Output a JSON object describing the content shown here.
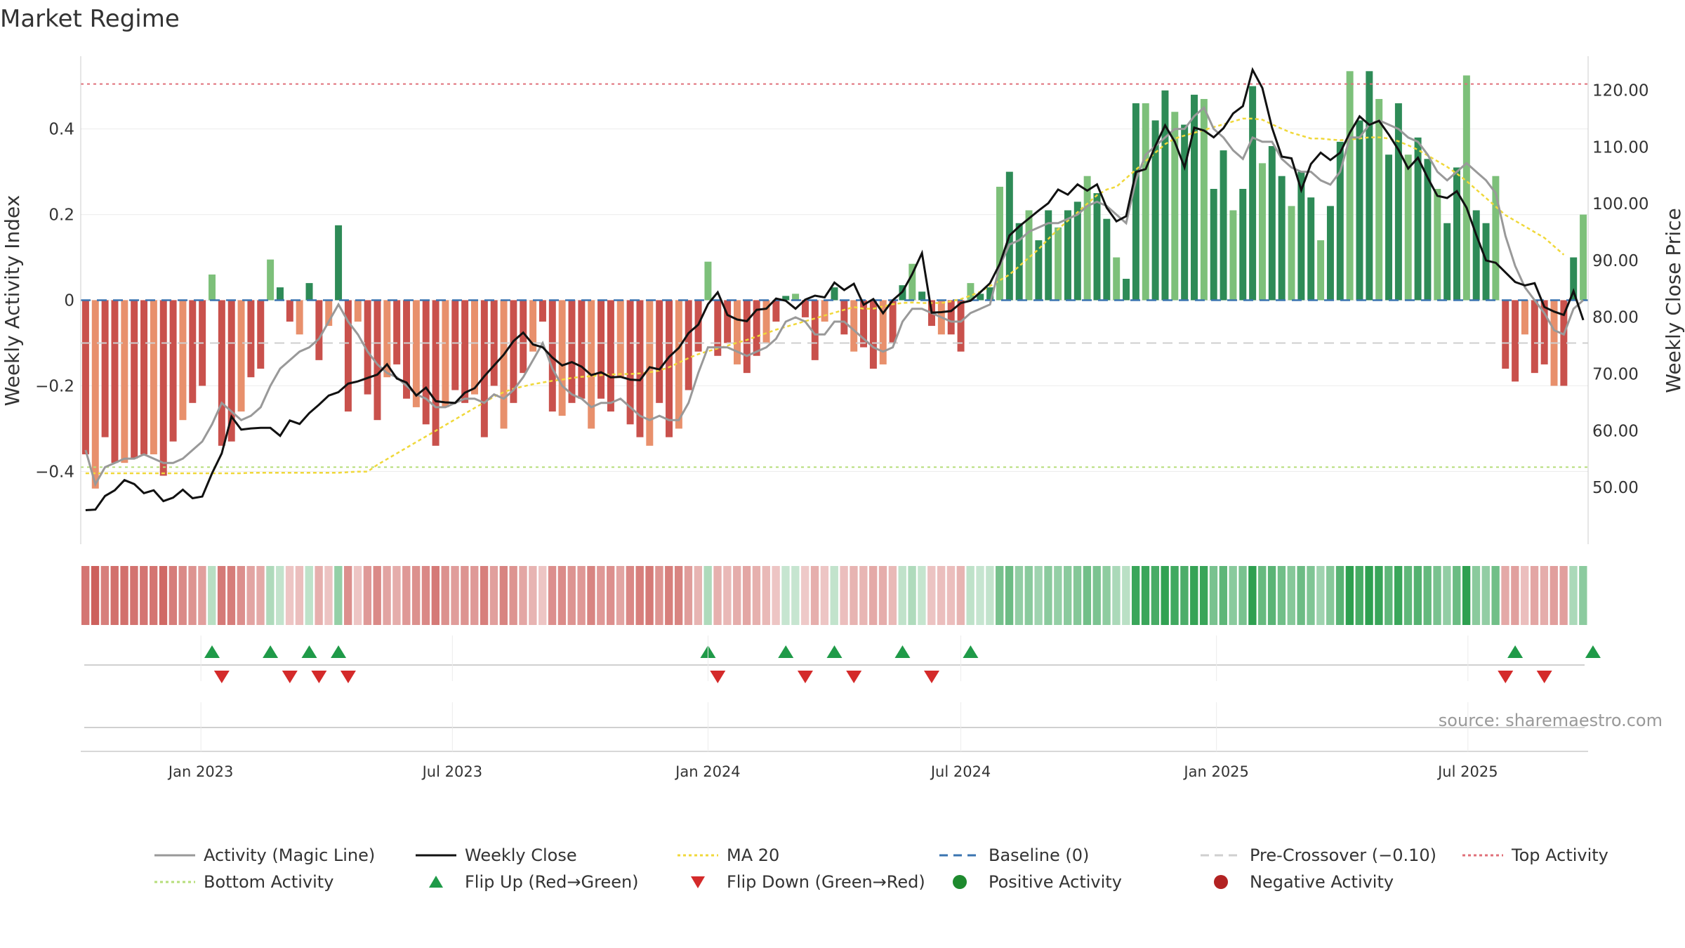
{
  "title": "Market Regime",
  "source": "source: sharemaestro.com",
  "chart_data": {
    "type": "bar",
    "x_start": "2022-10-10",
    "x_interval": "weekly",
    "xlabel": "",
    "ylabel_left": "Weekly Activity Index",
    "ylabel_right": "Weekly Close Price",
    "ylim_left": [
      -0.57,
      0.57
    ],
    "ylim_right": [
      40,
      126
    ],
    "yticks_left": [
      {
        "value": 0.4,
        "label": "0.4"
      },
      {
        "value": 0.2,
        "label": "0.2"
      },
      {
        "value": 0,
        "label": "0"
      },
      {
        "value": -0.2,
        "label": "−0.2"
      },
      {
        "value": -0.4,
        "label": "−0.4"
      }
    ],
    "yticks_right": [
      {
        "value": 120,
        "label": "120.00"
      },
      {
        "value": 110,
        "label": "110.00"
      },
      {
        "value": 100,
        "label": "100.00"
      },
      {
        "value": 90,
        "label": "90.00"
      },
      {
        "value": 80,
        "label": "80.00"
      },
      {
        "value": 70,
        "label": "70.00"
      },
      {
        "value": 60,
        "label": "60.00"
      },
      {
        "value": 50,
        "label": "50.00"
      }
    ],
    "xticks": [
      {
        "date": "2023-01-01",
        "label": "Jan 2023"
      },
      {
        "date": "2023-07-01",
        "label": "Jul 2023"
      },
      {
        "date": "2024-01-01",
        "label": "Jan 2024"
      },
      {
        "date": "2024-07-01",
        "label": "Jul 2024"
      },
      {
        "date": "2025-01-01",
        "label": "Jan 2025"
      },
      {
        "date": "2025-07-01",
        "label": "Jul 2025"
      }
    ],
    "levels": {
      "top_activity": 0.505,
      "bottom_activity": -0.39,
      "pre_crossover": -0.1,
      "baseline": 0
    },
    "activity": [
      -0.36,
      -0.44,
      -0.32,
      -0.38,
      -0.38,
      -0.37,
      -0.36,
      -0.36,
      -0.41,
      -0.33,
      -0.28,
      -0.24,
      -0.2,
      0.06,
      -0.34,
      -0.33,
      -0.26,
      -0.18,
      -0.16,
      0.095,
      0.03,
      -0.05,
      -0.08,
      0.04,
      -0.14,
      -0.06,
      0.175,
      -0.26,
      -0.05,
      -0.22,
      -0.28,
      -0.18,
      -0.15,
      -0.23,
      -0.25,
      -0.29,
      -0.34,
      -0.25,
      -0.21,
      -0.24,
      -0.22,
      -0.32,
      -0.2,
      -0.3,
      -0.24,
      -0.17,
      -0.12,
      -0.05,
      -0.26,
      -0.27,
      -0.24,
      -0.23,
      -0.3,
      -0.23,
      -0.26,
      -0.18,
      -0.29,
      -0.32,
      -0.34,
      -0.24,
      -0.32,
      -0.3,
      -0.21,
      -0.12,
      0.09,
      -0.13,
      -0.1,
      -0.15,
      -0.17,
      -0.13,
      -0.1,
      -0.05,
      0.01,
      0.015,
      -0.04,
      -0.14,
      -0.05,
      0.03,
      -0.08,
      -0.12,
      -0.11,
      -0.16,
      -0.15,
      -0.1,
      0.035,
      0.085,
      0.02,
      -0.06,
      -0.08,
      -0.08,
      -0.12,
      0.04,
      0.015,
      0.03,
      0.265,
      0.3,
      0.18,
      0.21,
      0.14,
      0.21,
      0.17,
      0.21,
      0.23,
      0.29,
      0.25,
      0.19,
      0.1,
      0.05,
      0.46,
      0.46,
      0.42,
      0.49,
      0.44,
      0.41,
      0.48,
      0.47,
      0.26,
      0.35,
      0.21,
      0.26,
      0.5,
      0.32,
      0.36,
      0.29,
      0.22,
      0.3,
      0.24,
      0.14,
      0.22,
      0.37,
      0.535,
      0.42,
      0.535,
      0.47,
      0.34,
      0.46,
      0.34,
      0.38,
      0.33,
      0.26,
      0.18,
      0.31,
      0.525,
      0.21,
      0.18,
      0.29,
      -0.16,
      -0.19,
      -0.08,
      -0.17,
      -0.15,
      -0.2,
      -0.2,
      0.1,
      0.2
    ],
    "close": [
      46.0,
      46.1,
      48.5,
      49.5,
      51.3,
      50.6,
      49.0,
      49.5,
      47.6,
      48.2,
      49.6,
      48.1,
      48.4,
      52.5,
      56.0,
      62.5,
      60.2,
      60.4,
      60.5,
      60.5,
      59.1,
      61.8,
      61.2,
      63.1,
      64.6,
      66.2,
      66.8,
      68.3,
      68.7,
      69.3,
      69.9,
      71.7,
      69.2,
      68.5,
      66.2,
      67.6,
      65.2,
      65.0,
      64.9,
      66.7,
      67.5,
      69.6,
      71.5,
      73.4,
      75.8,
      77.3,
      75.2,
      74.7,
      72.9,
      71.5,
      72.1,
      71.3,
      69.8,
      70.3,
      69.4,
      69.5,
      69.0,
      68.9,
      71.2,
      70.8,
      73.0,
      74.6,
      77.2,
      78.7,
      82.3,
      84.4,
      80.4,
      79.6,
      79.3,
      81.3,
      81.5,
      83.3,
      82.9,
      81.5,
      83.1,
      83.8,
      83.5,
      86.1,
      84.8,
      85.9,
      82.2,
      83.2,
      80.7,
      83.0,
      84.5,
      87.6,
      91.3,
      80.8,
      80.9,
      81.1,
      82.5,
      82.9,
      84.4,
      86.0,
      89.4,
      94.4,
      96.0,
      97.4,
      98.8,
      100.1,
      102.5,
      101.6,
      103.4,
      102.3,
      103.4,
      99.3,
      96.9,
      97.8,
      105.6,
      106.1,
      110.2,
      113.8,
      110.9,
      106.4,
      113.4,
      112.9,
      111.7,
      113.3,
      115.9,
      117.2,
      123.6,
      120.4,
      113.4,
      108.3,
      108.0,
      102.4,
      107.0,
      109.0,
      107.7,
      109.0,
      112.5,
      115.4,
      113.9,
      114.6,
      112.2,
      109.5,
      106.2,
      108.1,
      104.6,
      101.4,
      101.0,
      102.2,
      99.3,
      94.5,
      90.0,
      89.6,
      87.9,
      86.2,
      85.6,
      86.0,
      81.8,
      81.0,
      80.4,
      84.6,
      79.5
    ],
    "magic_line": [
      -0.35,
      -0.43,
      -0.39,
      -0.38,
      -0.37,
      -0.37,
      -0.36,
      -0.37,
      -0.38,
      -0.38,
      -0.37,
      -0.35,
      -0.33,
      -0.29,
      -0.24,
      -0.26,
      -0.28,
      -0.27,
      -0.25,
      -0.2,
      -0.16,
      -0.14,
      -0.12,
      -0.11,
      -0.09,
      -0.05,
      -0.01,
      -0.05,
      -0.08,
      -0.12,
      -0.15,
      -0.17,
      -0.18,
      -0.2,
      -0.22,
      -0.23,
      -0.25,
      -0.25,
      -0.24,
      -0.23,
      -0.23,
      -0.24,
      -0.22,
      -0.23,
      -0.21,
      -0.18,
      -0.14,
      -0.1,
      -0.16,
      -0.2,
      -0.22,
      -0.23,
      -0.25,
      -0.24,
      -0.24,
      -0.23,
      -0.25,
      -0.27,
      -0.28,
      -0.27,
      -0.28,
      -0.28,
      -0.24,
      -0.17,
      -0.11,
      -0.11,
      -0.11,
      -0.12,
      -0.13,
      -0.12,
      -0.11,
      -0.09,
      -0.05,
      -0.04,
      -0.05,
      -0.08,
      -0.08,
      -0.05,
      -0.05,
      -0.07,
      -0.09,
      -0.11,
      -0.12,
      -0.11,
      -0.05,
      -0.02,
      -0.02,
      -0.03,
      -0.04,
      -0.05,
      -0.05,
      -0.03,
      -0.02,
      -0.01,
      0.08,
      0.13,
      0.14,
      0.16,
      0.17,
      0.18,
      0.18,
      0.19,
      0.2,
      0.22,
      0.23,
      0.22,
      0.2,
      0.18,
      0.28,
      0.34,
      0.36,
      0.38,
      0.4,
      0.4,
      0.43,
      0.45,
      0.4,
      0.38,
      0.35,
      0.33,
      0.38,
      0.37,
      0.37,
      0.33,
      0.31,
      0.3,
      0.3,
      0.28,
      0.27,
      0.3,
      0.38,
      0.38,
      0.41,
      0.42,
      0.41,
      0.4,
      0.38,
      0.37,
      0.34,
      0.3,
      0.28,
      0.3,
      0.32,
      0.3,
      0.28,
      0.25,
      0.15,
      0.08,
      0.03,
      0.0,
      -0.03,
      -0.07,
      -0.08,
      -0.02,
      0.0
    ],
    "ma20": [
      52.5,
      52.5,
      52.5,
      52.5,
      52.5,
      52.5,
      52.5,
      52.5,
      52.5,
      52.5,
      52.5,
      52.5,
      52.5,
      52.5,
      52.5,
      52.5,
      52.5,
      52.6,
      52.6,
      52.6,
      52.6,
      52.6,
      52.6,
      52.6,
      52.6,
      52.6,
      52.6,
      52.7,
      52.8,
      52.8,
      54.0,
      55.0,
      56.0,
      57.0,
      58.0,
      59.0,
      60.0,
      61.0,
      62.0,
      63.0,
      64.0,
      65.0,
      66.0,
      66.8,
      67.4,
      67.8,
      68.2,
      68.5,
      68.8,
      69.0,
      69.3,
      69.5,
      69.6,
      69.8,
      69.9,
      70.0,
      70.0,
      70.1,
      70.3,
      70.6,
      71.2,
      72.0,
      72.8,
      73.5,
      74.0,
      74.5,
      75.0,
      75.5,
      76.0,
      76.6,
      77.2,
      77.8,
      78.3,
      78.8,
      79.3,
      79.8,
      80.3,
      80.8,
      81.3,
      81.8,
      81.5,
      81.5,
      81.9,
      82.3,
      82.5,
      82.6,
      82.5,
      82.5,
      82.5,
      82.8,
      83.2,
      83.8,
      84.5,
      85.5,
      86.5,
      87.5,
      89.0,
      90.5,
      92.0,
      93.8,
      95.5,
      97.0,
      98.5,
      100.0,
      101.5,
      102.5,
      103.0,
      104.5,
      106.0,
      107.5,
      109.0,
      110.5,
      111.5,
      112.0,
      112.5,
      113.0,
      113.5,
      114.0,
      114.5,
      115.0,
      115.0,
      114.8,
      114.0,
      113.2,
      112.5,
      112.0,
      111.5,
      111.5,
      111.3,
      111.2,
      111.3,
      111.5,
      111.7,
      111.7,
      111.5,
      111.0,
      110.3,
      109.5,
      108.5,
      107.5,
      106.5,
      105.3,
      104.0,
      102.5,
      101.0,
      99.5,
      98.0,
      97.0,
      96.0,
      95.0,
      94.0,
      92.5,
      91.0
    ],
    "regime_strip_labels": "per-week color band: red shades = negative activity, green shades = positive activity",
    "flip_up_weeks": [
      13,
      19,
      23,
      26,
      64,
      72,
      77,
      84,
      91,
      147,
      155
    ],
    "flip_down_weeks": [
      14,
      21,
      24,
      27,
      65,
      74,
      79,
      87,
      146,
      150
    ],
    "legend": [
      {
        "label": "Activity (Magic Line)",
        "symbol": "line",
        "color": "#999999",
        "dash": ""
      },
      {
        "label": "Weekly Close",
        "symbol": "line",
        "color": "#111111",
        "dash": ""
      },
      {
        "label": "MA 20",
        "symbol": "line",
        "color": "#f0d83a",
        "dash": "4,4"
      },
      {
        "label": "Baseline (0)",
        "symbol": "line",
        "color": "#3a74b0",
        "dash": "12,8"
      },
      {
        "label": "Pre-Crossover (−0.10)",
        "symbol": "line",
        "color": "#cfcfcf",
        "dash": "12,8"
      },
      {
        "label": "Top Activity",
        "symbol": "line",
        "color": "#e0707a",
        "dash": "4,4"
      },
      {
        "label": "Bottom Activity",
        "symbol": "line",
        "color": "#b6de7a",
        "dash": "4,4"
      },
      {
        "label": "Flip Up (Red→Green)",
        "symbol": "triangle-up",
        "color": "#1f9a48",
        "dash": ""
      },
      {
        "label": "Flip Down (Green→Red)",
        "symbol": "triangle-down",
        "color": "#d42a2a",
        "dash": ""
      },
      {
        "label": "Positive Activity",
        "symbol": "circle",
        "color": "#1e8a2e",
        "dash": ""
      },
      {
        "label": "Negative Activity",
        "symbol": "circle",
        "color": "#b22222",
        "dash": ""
      }
    ]
  },
  "colors": {
    "neg_strong": "#c9514c",
    "neg_light": "#e8906c",
    "pos_strong": "#2e8b57",
    "pos_light": "#7dc07a",
    "close": "#111111",
    "magic": "#999999",
    "ma20": "#f0d83a",
    "baseline": "#3a74b0",
    "precross": "#cfcfcf",
    "top": "#e0707a",
    "bottom": "#b6de7a",
    "flip_up": "#1f9a48",
    "flip_down": "#d42a2a",
    "grid": "#ececec",
    "axis": "#cccccc"
  }
}
